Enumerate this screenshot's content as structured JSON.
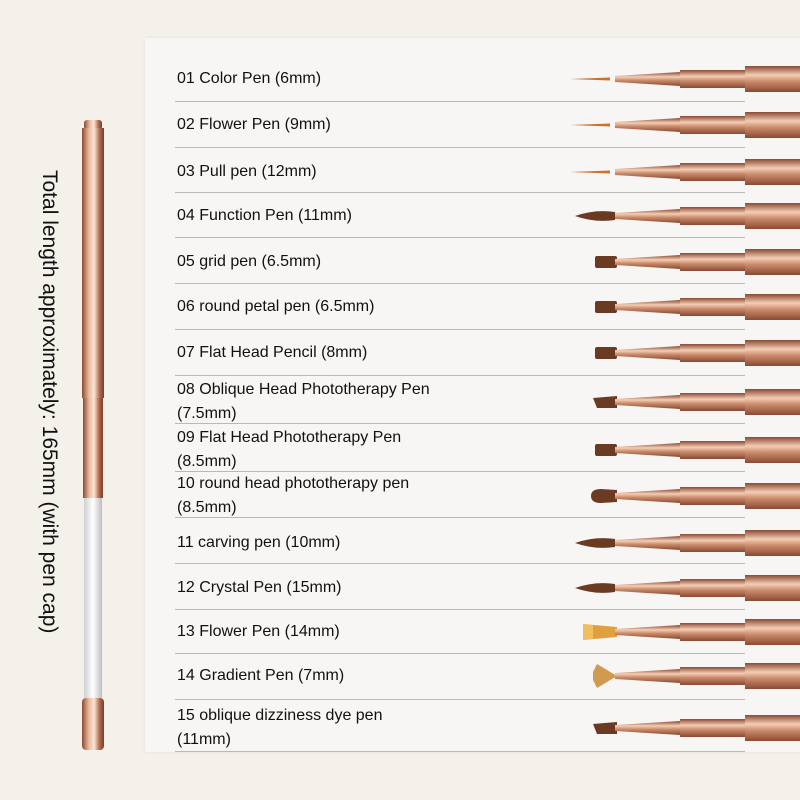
{
  "side_caption": "Total length approximately: 165mm (with pen cap)",
  "colors": {
    "rose_gold": "#c98a6a",
    "rose_gold_dark": "#8a4a33",
    "brush_brown": "#6b3a22",
    "panel": "#f7f6f4",
    "background": "#f4f0ea"
  },
  "pens": [
    {
      "label": "01 Color Pen (6mm)",
      "tip": "liner"
    },
    {
      "label": "02 Flower Pen (9mm)",
      "tip": "liner"
    },
    {
      "label": "03 Pull pen (12mm)",
      "tip": "liner"
    },
    {
      "label": "04 Function Pen (11mm)",
      "tip": "round"
    },
    {
      "label": "05 grid pen (6.5mm)",
      "tip": "flat"
    },
    {
      "label": "06 round petal pen (6.5mm)",
      "tip": "flat"
    },
    {
      "label": "07 Flat Head Pencil (8mm)",
      "tip": "flat"
    },
    {
      "label": "08 Oblique Head Phototherapy Pen (7.5mm)",
      "tip": "oblique"
    },
    {
      "label": "09 Flat Head Phototherapy Pen (8.5mm)",
      "tip": "flat"
    },
    {
      "label": "10 round head phototherapy pen (8.5mm)",
      "tip": "roundflat"
    },
    {
      "label": "11 carving pen (10mm)",
      "tip": "round"
    },
    {
      "label": "12 Crystal Pen (15mm)",
      "tip": "round"
    },
    {
      "label": "13 Flower Pen (14mm)",
      "tip": "ombre"
    },
    {
      "label": "14 Gradient Pen (7mm)",
      "tip": "fan"
    },
    {
      "label": "15 oblique dizziness dye pen (11mm)",
      "tip": "oblique"
    }
  ]
}
